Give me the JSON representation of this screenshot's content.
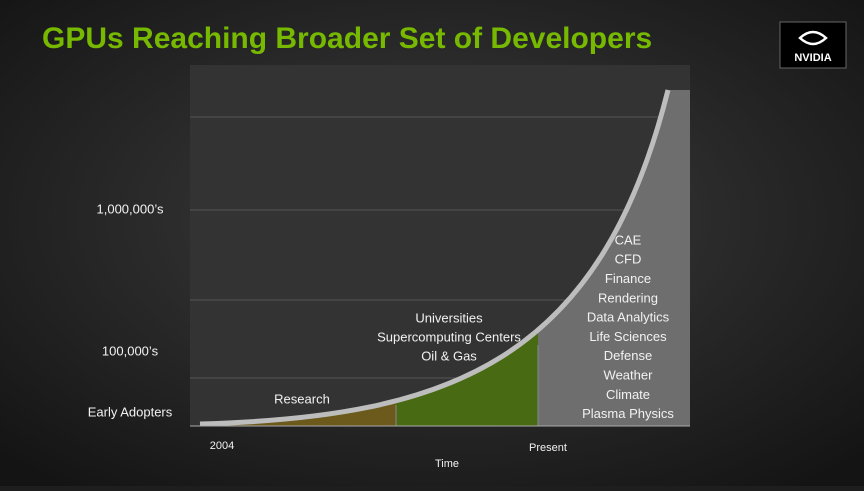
{
  "header": {
    "title": "GPUs Reaching Broader Set of Developers",
    "logo": "NVIDIA"
  },
  "y_labels": [
    "1,000,000’s",
    "100,000’s",
    "Early Adopters"
  ],
  "x_labels": {
    "start": "2004",
    "end": "Present",
    "axis": "Time"
  },
  "regions": [
    {
      "items": [
        "Research"
      ]
    },
    {
      "items": [
        "Universities",
        "Supercomputing Centers",
        "Oil & Gas"
      ]
    },
    {
      "items": [
        "CAE",
        "CFD",
        "Finance",
        "Rendering",
        "Data Analytics",
        "Life Sciences",
        "Defense",
        "Weather",
        "Climate",
        "Plasma Physics"
      ]
    }
  ]
}
